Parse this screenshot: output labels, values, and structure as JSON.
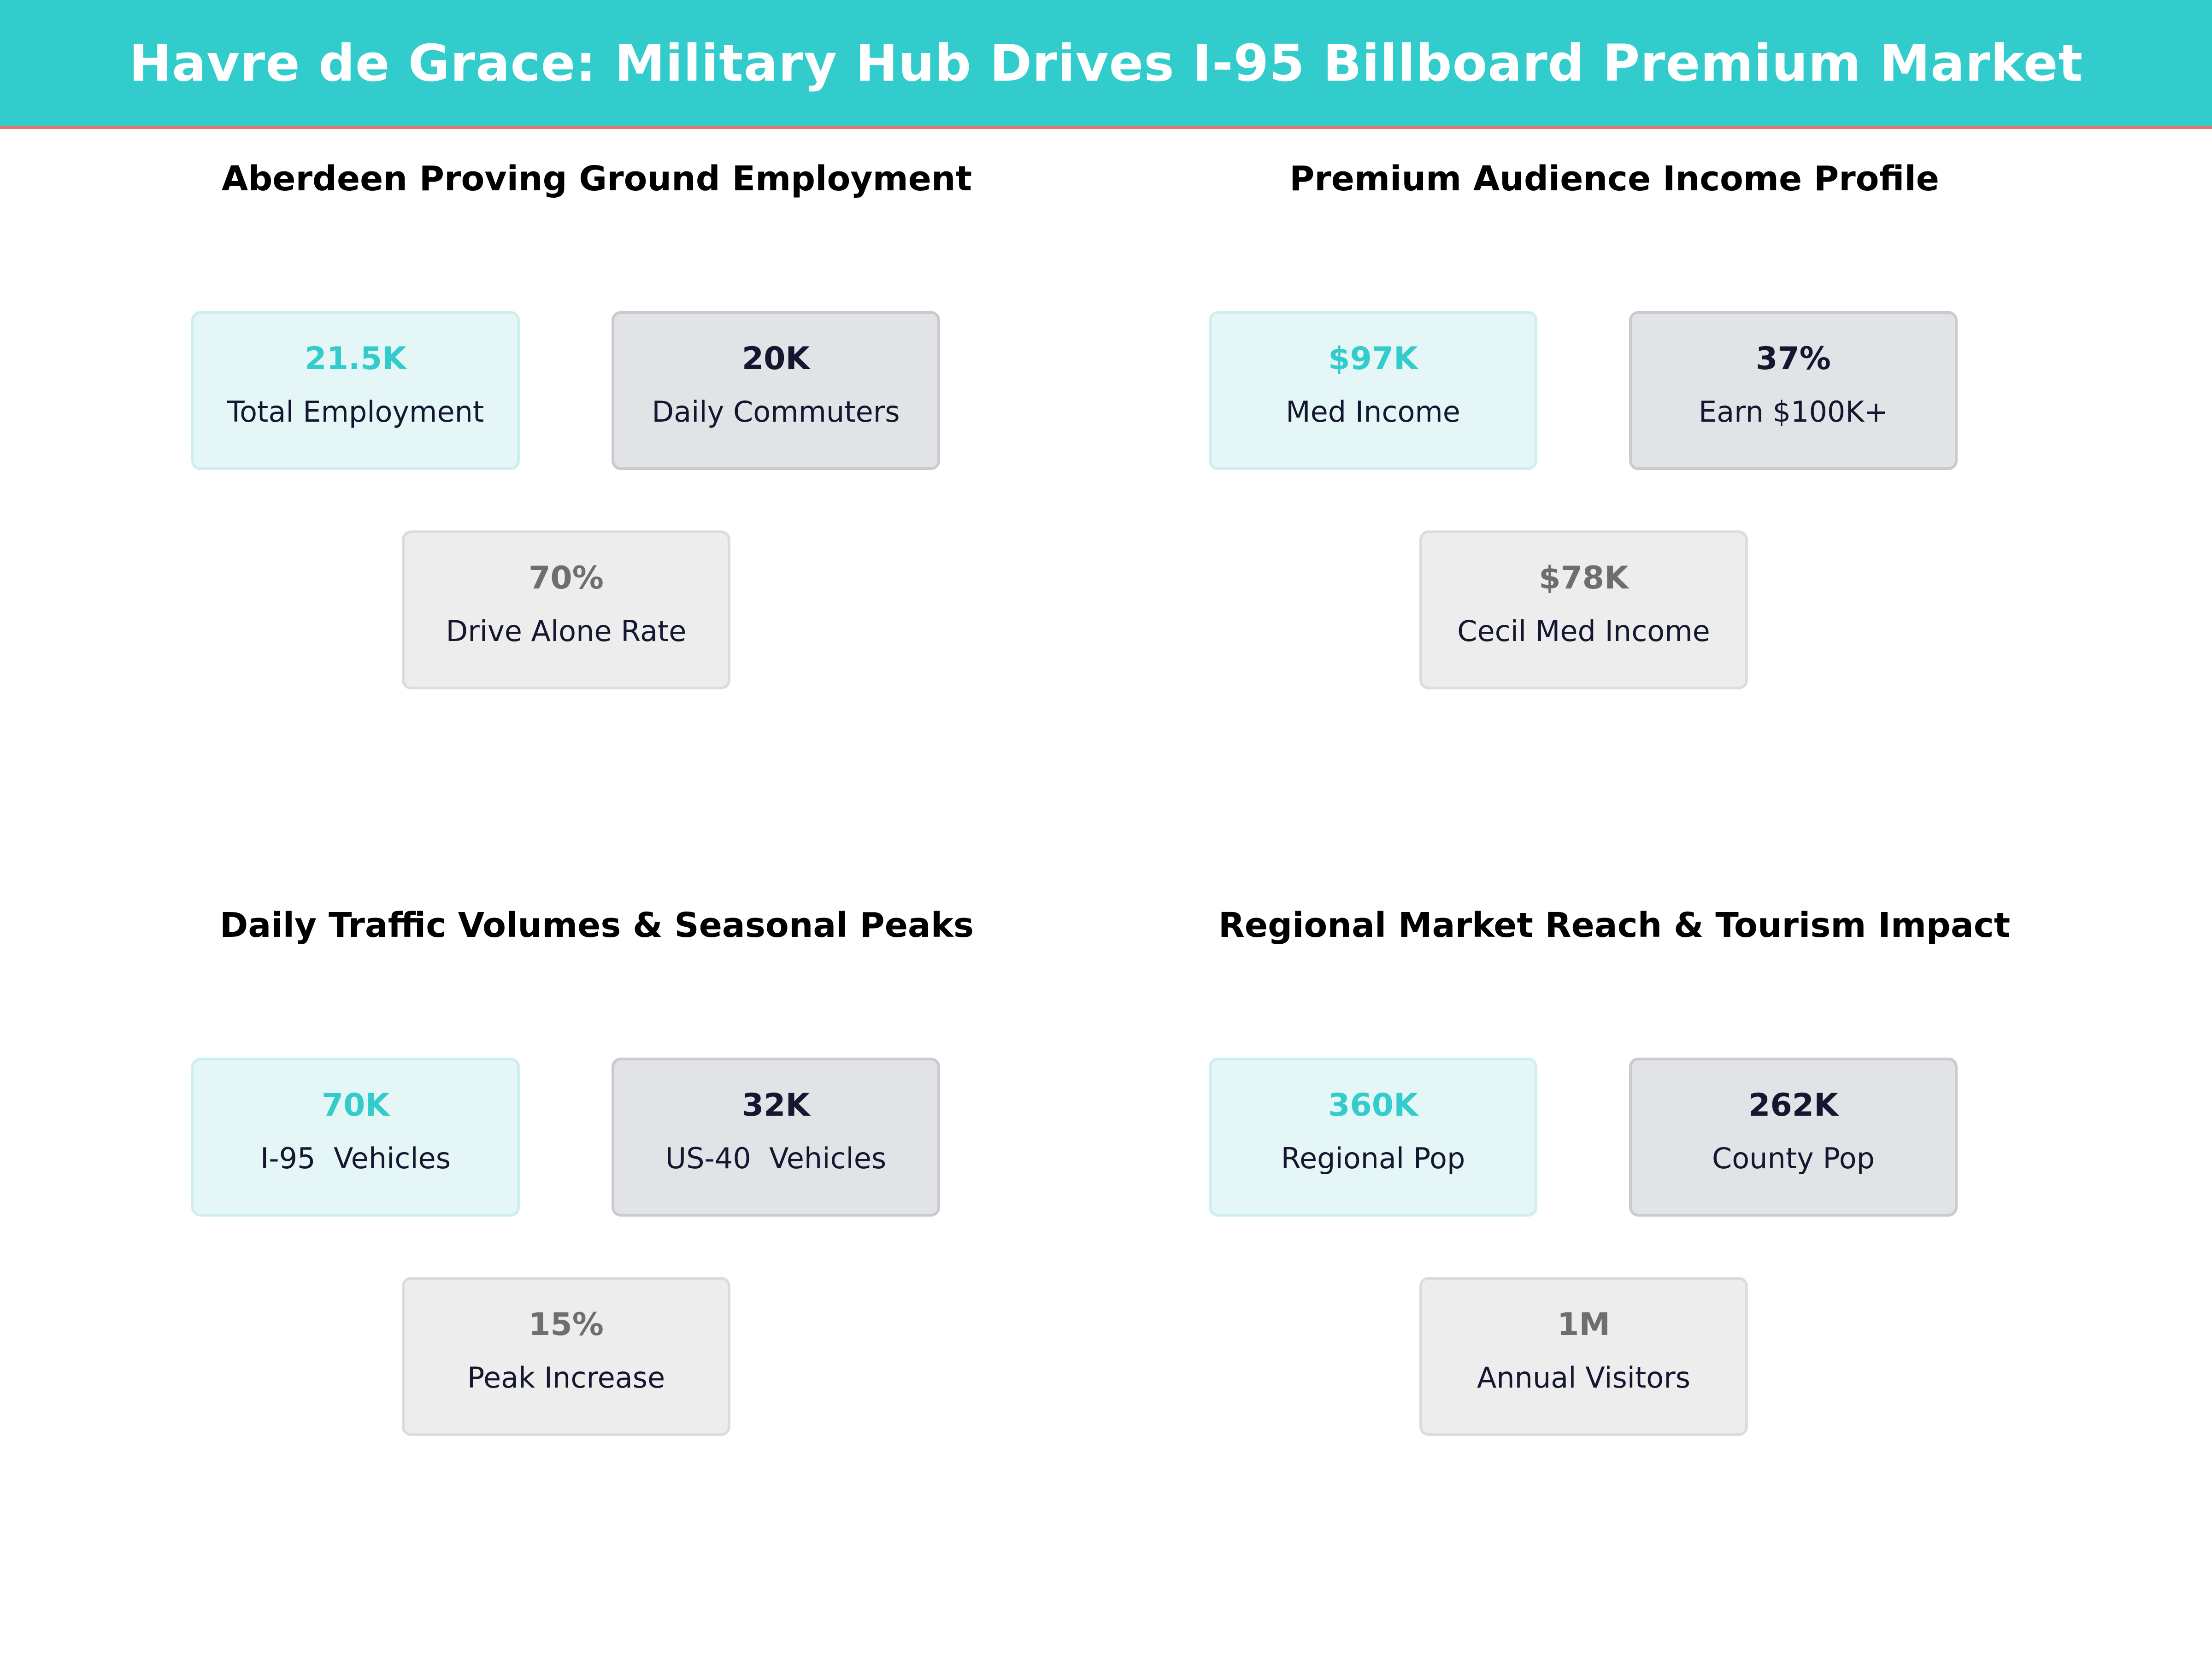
{
  "header": {
    "title": "Havre de Grace: Military Hub Drives I-95 Billboard Premium Market"
  },
  "colors": {
    "accent": "#33cccc",
    "header_underline": "#e57373",
    "dark": "#14172f",
    "muted": "#6e6e6e"
  },
  "panels": [
    {
      "title": "Aberdeen Proving Ground Employment",
      "cards": [
        {
          "value": "21.5K",
          "label": "Total Employment"
        },
        {
          "value": "20K",
          "label": "Daily Commuters"
        },
        {
          "value": "70%",
          "label": "Drive Alone Rate"
        }
      ]
    },
    {
      "title": "Premium Audience Income Profile",
      "cards": [
        {
          "value": "$97K",
          "label": "Med Income"
        },
        {
          "value": "37%",
          "label": "Earn $100K+"
        },
        {
          "value": "$78K",
          "label": "Cecil Med Income"
        }
      ]
    },
    {
      "title": "Daily Traffic Volumes & Seasonal Peaks",
      "cards": [
        {
          "value": "70K",
          "label": "I-95  Vehicles"
        },
        {
          "value": "32K",
          "label": "US-40  Vehicles"
        },
        {
          "value": "15%",
          "label": "Peak Increase"
        }
      ]
    },
    {
      "title": "Regional Market Reach & Tourism Impact",
      "cards": [
        {
          "value": "360K",
          "label": "Regional Pop"
        },
        {
          "value": "262K",
          "label": "County Pop"
        },
        {
          "value": "1M",
          "label": "Annual Visitors"
        }
      ]
    }
  ]
}
